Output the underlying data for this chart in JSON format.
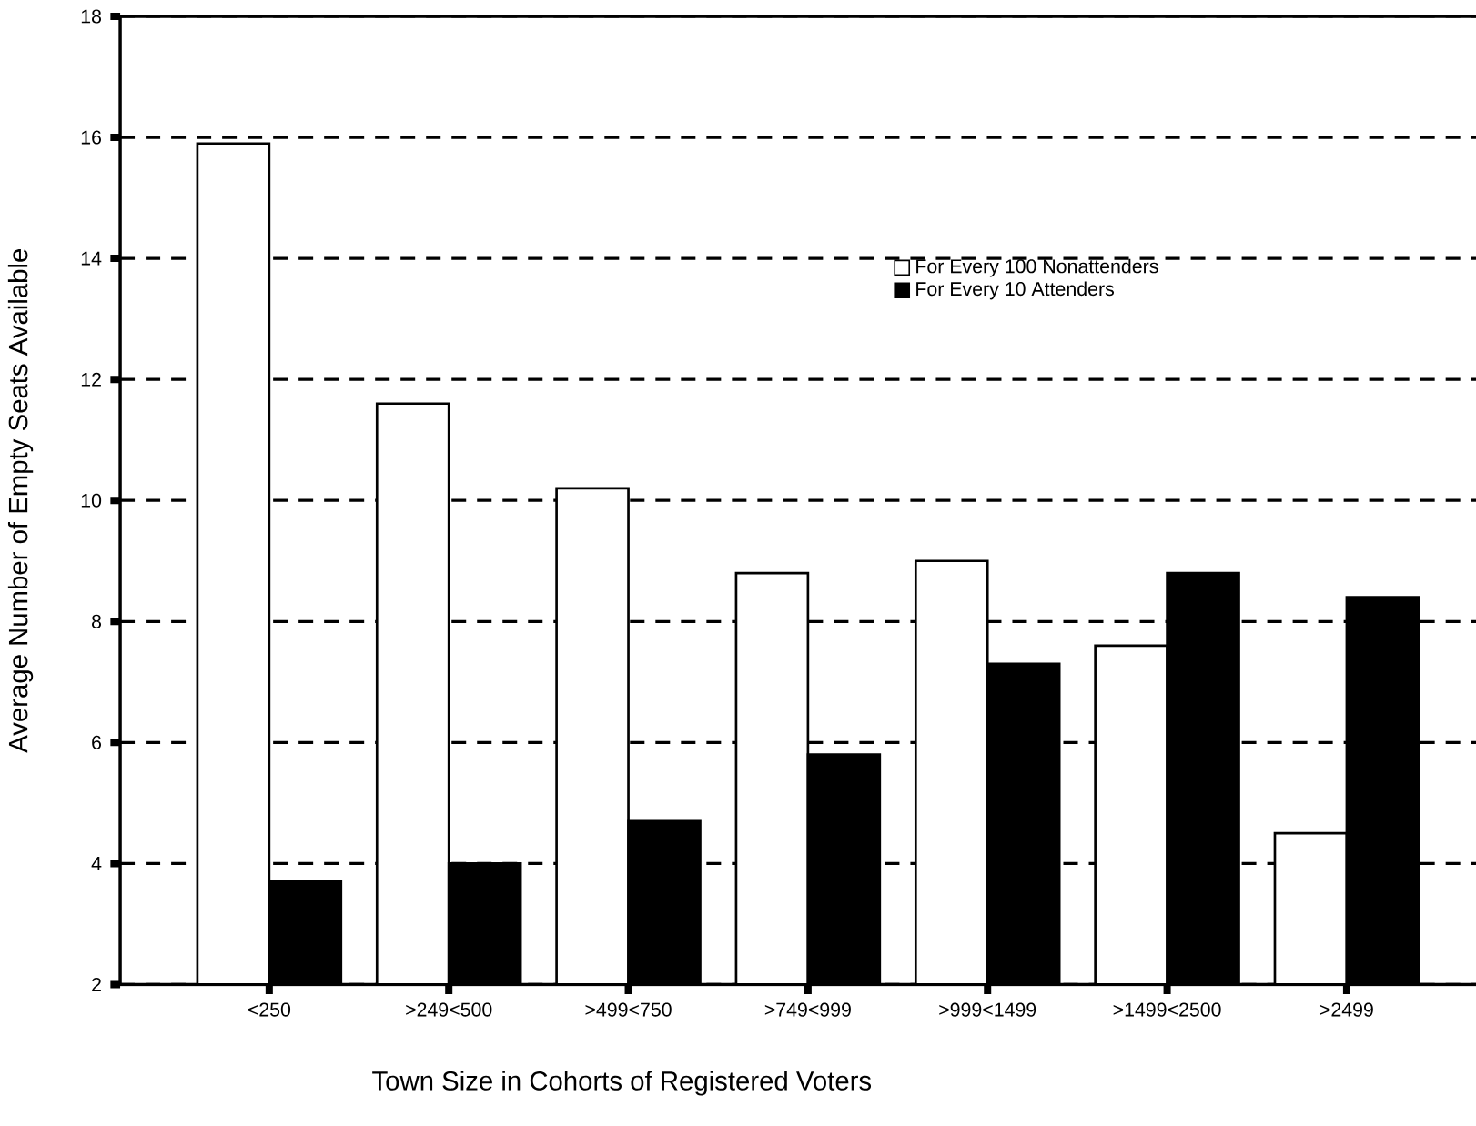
{
  "chart_data": {
    "type": "bar",
    "xlabel": "Town Size in Cohorts of Registered Voters",
    "ylabel": "Average Number of Empty Seats Available",
    "categories": [
      "<250",
      ">249<500",
      ">499<750",
      ">749<999",
      ">999<1499",
      ">1499<2500",
      ">2499"
    ],
    "series": [
      {
        "name": "For Every 100 Nonattenders",
        "color": "#ffffff",
        "values": [
          15.9,
          11.6,
          10.2,
          8.8,
          9.0,
          7.6,
          4.5
        ]
      },
      {
        "name": "For Every 10 Attenders",
        "color": "#000000",
        "values": [
          3.7,
          4.0,
          4.7,
          5.8,
          7.3,
          8.8,
          8.4
        ]
      }
    ],
    "ylim": [
      2,
      18
    ],
    "yticks": [
      2,
      4,
      6,
      8,
      10,
      12,
      14,
      16,
      18
    ],
    "grid": "y",
    "legend": "top right"
  }
}
